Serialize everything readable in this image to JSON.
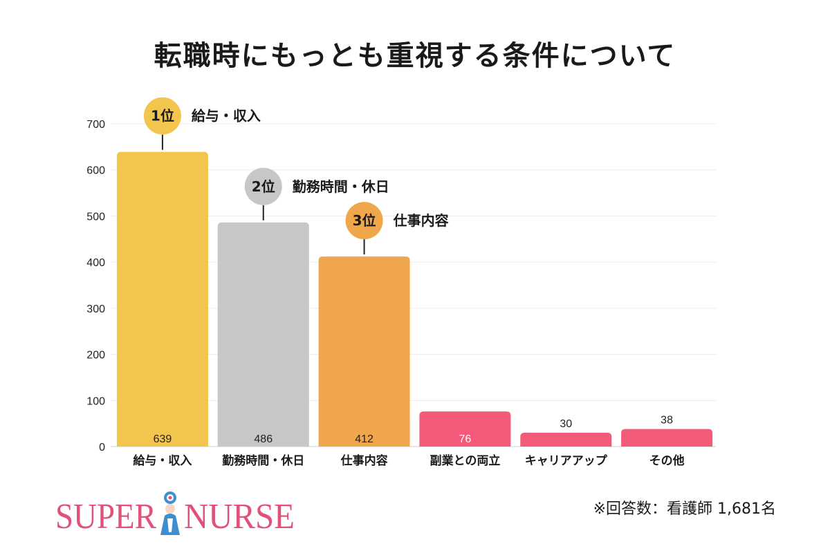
{
  "chart_data": {
    "type": "bar",
    "title": "転職時にもっとも重視する条件について",
    "categories": [
      "給与・収入",
      "勤務時間・休日",
      "仕事内容",
      "副業との両立",
      "キャリアアップ",
      "その他"
    ],
    "values": [
      639,
      486,
      412,
      76,
      30,
      38
    ],
    "ylim": [
      0,
      700
    ],
    "yticks": [
      "0",
      "100",
      "200",
      "300",
      "400",
      "500",
      "600",
      "700"
    ],
    "grid": true,
    "bar_colors": [
      "#F2C64E",
      "#C9C6C9",
      "#F0A64B",
      "#F45A7A",
      "#F45A7A",
      "#F45A7A"
    ],
    "rank_badges": [
      {
        "rank_label": "1位",
        "category_label": "給与・収入",
        "bar_index": 0,
        "color": "#F2C64E"
      },
      {
        "rank_label": "2位",
        "category_label": "勤務時間・休日",
        "bar_index": 1,
        "color": "#C9C6C9"
      },
      {
        "rank_label": "3位",
        "category_label": "仕事内容",
        "bar_index": 2,
        "color": "#F0A64B"
      }
    ]
  },
  "footnote": "※回答数：看護師 1,681名",
  "logo": {
    "text_left": "SUPER",
    "text_right": "NURSE",
    "color": "#E0527A"
  }
}
